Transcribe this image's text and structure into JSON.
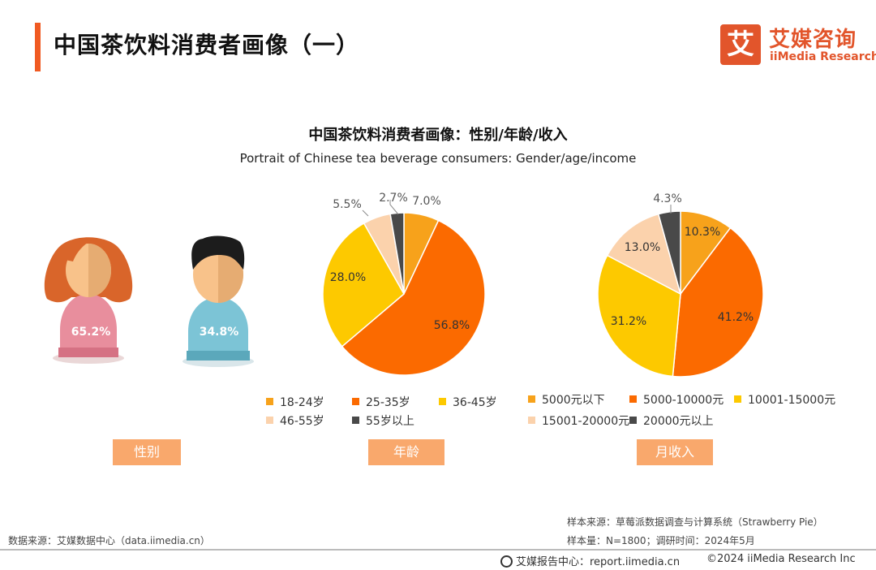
{
  "header": {
    "page_title": "中国茶饮料消费者画像（一）",
    "logo_mark": "艾",
    "logo_cn": "艾媒咨询",
    "logo_en": "iiMedia Research"
  },
  "chart_title": "中国茶饮料消费者画像：性别/年龄/收入",
  "chart_subtitle": "Portrait of Chinese tea beverage consumers: Gender/age/income",
  "colors": {
    "orange": "#f7a21b",
    "dark_orange": "#fb6a00",
    "yellow": "#fdc900",
    "peach": "#fbd2ac",
    "dark_gray": "#494949",
    "female_hair": "#d9652a",
    "female_body": "#e88e9d",
    "male_hair": "#1c1c1c",
    "male_body": "#7cc4d6",
    "skin": "#f8c28a",
    "label_bg": "#f9a86c",
    "accent": "#f05a22"
  },
  "chart_data": [
    {
      "type": "pictograph",
      "categories": [
        "女性",
        "男性"
      ],
      "values": [
        65.2,
        34.8
      ],
      "labels": [
        "65.2%",
        "34.8%"
      ],
      "section_label": "性别"
    },
    {
      "type": "pie",
      "categories": [
        "18-24岁",
        "25-35岁",
        "36-45岁",
        "46-55岁",
        "55岁以上"
      ],
      "values": [
        7.0,
        56.8,
        28.0,
        5.5,
        2.7
      ],
      "labels": [
        "7.0%",
        "56.8%",
        "28.0%",
        "5.5%",
        "2.7%"
      ],
      "colors": [
        "#f7a21b",
        "#fb6a00",
        "#fdc900",
        "#fbd2ac",
        "#494949"
      ],
      "section_label": "年龄"
    },
    {
      "type": "pie",
      "categories": [
        "5000元以下",
        "5000-10000元",
        "10001-15000元",
        "15001-20000元",
        "20000元以上"
      ],
      "values": [
        10.3,
        41.2,
        31.2,
        13.0,
        4.3
      ],
      "labels": [
        "10.3%",
        "41.2%",
        "31.2%",
        "13.0%",
        "4.3%"
      ],
      "colors": [
        "#f7a21b",
        "#fb6a00",
        "#fdc900",
        "#fbd2ac",
        "#494949"
      ],
      "section_label": "月收入"
    }
  ],
  "notes": {
    "data_source": "数据来源：艾媒数据中心（data.iimedia.cn）",
    "sample_source": "样本来源：草莓派数据调查与计算系统（Strawberry Pie）",
    "sample_size": "样本量：N=1800；调研时间：2024年5月"
  },
  "footer": {
    "report_center": "艾媒报告中心：report.iimedia.cn",
    "copyright": "©2024  iiMedia Research Inc"
  }
}
